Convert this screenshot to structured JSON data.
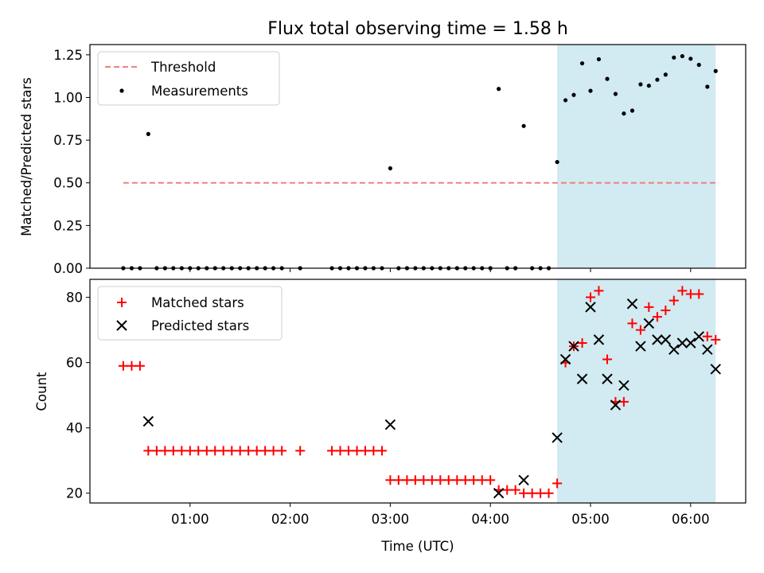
{
  "chart_data": [
    {
      "type": "scatter",
      "title": "Flux total observing time = 1.58 h",
      "ylabel": "Matched/Predicted stars",
      "xlabel": "",
      "xlim": [
        0.0,
        6.55
      ],
      "ylim": [
        0.0,
        1.31
      ],
      "yticks": [
        0.0,
        0.25,
        0.5,
        0.75,
        1.0,
        1.25
      ],
      "ytick_labels": [
        "0.00",
        "0.25",
        "0.50",
        "0.75",
        "1.00",
        "1.25"
      ],
      "xticks": [
        1,
        2,
        3,
        4,
        5,
        6
      ],
      "shaded_region": [
        4.667,
        6.25
      ],
      "threshold": {
        "name": "Threshold",
        "value": 0.5,
        "x_range": [
          0.333,
          6.25
        ],
        "color": "#f08080"
      },
      "series": [
        {
          "name": "Measurements",
          "marker": "dot",
          "color": "#000000",
          "x": [
            0.333,
            0.417,
            0.5,
            0.583,
            0.667,
            0.75,
            0.833,
            0.917,
            1.0,
            1.083,
            1.167,
            1.25,
            1.333,
            1.417,
            1.5,
            1.583,
            1.667,
            1.75,
            1.833,
            1.917,
            2.1,
            2.417,
            2.5,
            2.583,
            2.667,
            2.75,
            2.833,
            2.917,
            3.0,
            3.083,
            3.167,
            3.25,
            3.333,
            3.417,
            3.5,
            3.583,
            3.667,
            3.75,
            3.833,
            3.917,
            4.0,
            4.083,
            4.167,
            4.25,
            4.333,
            4.417,
            4.5,
            4.583,
            4.667,
            4.75,
            4.833,
            4.917,
            5.0,
            5.083,
            5.167,
            5.25,
            5.333,
            5.417,
            5.5,
            5.583,
            5.667,
            5.75,
            5.833,
            5.917,
            6.0,
            6.083,
            6.167,
            6.25
          ],
          "y": [
            0,
            0,
            0,
            0.786,
            0,
            0,
            0,
            0,
            0,
            0,
            0,
            0,
            0,
            0,
            0,
            0,
            0,
            0,
            0,
            0,
            0,
            0,
            0,
            0,
            0,
            0,
            0,
            0,
            0.585,
            0,
            0,
            0,
            0,
            0,
            0,
            0,
            0,
            0,
            0,
            0,
            0,
            1.05,
            0,
            0,
            0.833,
            0,
            0,
            0,
            0.622,
            0.984,
            1.015,
            1.2,
            1.039,
            1.224,
            1.109,
            1.021,
            0.906,
            0.923,
            1.077,
            1.069,
            1.104,
            1.134,
            1.234,
            1.242,
            1.227,
            1.191,
            1.063,
            1.155
          ]
        }
      ]
    },
    {
      "type": "scatter",
      "title": "",
      "ylabel": "Count",
      "xlabel": "Time (UTC)",
      "xlim": [
        0.0,
        6.55
      ],
      "ylim": [
        17,
        85.5
      ],
      "yticks": [
        20,
        40,
        60,
        80
      ],
      "ytick_labels": [
        "20",
        "40",
        "60",
        "80"
      ],
      "xticks": [
        1,
        2,
        3,
        4,
        5,
        6
      ],
      "xtick_labels": [
        "01:00",
        "02:00",
        "03:00",
        "04:00",
        "05:00",
        "06:00"
      ],
      "shaded_region": [
        4.667,
        6.25
      ],
      "series": [
        {
          "name": "Matched stars",
          "marker": "plus",
          "color": "#ff0000",
          "x": [
            0.333,
            0.417,
            0.5,
            0.583,
            0.667,
            0.75,
            0.833,
            0.917,
            1.0,
            1.083,
            1.167,
            1.25,
            1.333,
            1.417,
            1.5,
            1.583,
            1.667,
            1.75,
            1.833,
            1.917,
            2.1,
            2.417,
            2.5,
            2.583,
            2.667,
            2.75,
            2.833,
            2.917,
            3.0,
            3.083,
            3.167,
            3.25,
            3.333,
            3.417,
            3.5,
            3.583,
            3.667,
            3.75,
            3.833,
            3.917,
            4.0,
            4.083,
            4.167,
            4.25,
            4.333,
            4.417,
            4.5,
            4.583,
            4.667,
            4.75,
            4.833,
            4.917,
            5.0,
            5.083,
            5.167,
            5.25,
            5.333,
            5.417,
            5.5,
            5.583,
            5.667,
            5.75,
            5.833,
            5.917,
            6.0,
            6.083,
            6.167,
            6.25
          ],
          "y": [
            59,
            59,
            59,
            33,
            33,
            33,
            33,
            33,
            33,
            33,
            33,
            33,
            33,
            33,
            33,
            33,
            33,
            33,
            33,
            33,
            33,
            33,
            33,
            33,
            33,
            33,
            33,
            33,
            24,
            24,
            24,
            24,
            24,
            24,
            24,
            24,
            24,
            24,
            24,
            24,
            24,
            21,
            21,
            21,
            20,
            20,
            20,
            20,
            23,
            60,
            65,
            66,
            80,
            82,
            61,
            48,
            48,
            72,
            70,
            77,
            74,
            76,
            79,
            82,
            81,
            81,
            68,
            67
          ]
        },
        {
          "name": "Predicted stars",
          "marker": "x",
          "color": "#000000",
          "x": [
            0.583,
            3.0,
            4.083,
            4.333,
            4.667,
            4.75,
            4.833,
            4.917,
            5.0,
            5.083,
            5.167,
            5.25,
            5.333,
            5.417,
            5.5,
            5.583,
            5.667,
            5.75,
            5.833,
            5.917,
            6.0,
            6.083,
            6.167,
            6.25
          ],
          "y": [
            42,
            41,
            20,
            24,
            37,
            61,
            65,
            55,
            77,
            67,
            55,
            47,
            53,
            78,
            65,
            72,
            67,
            67,
            64,
            66,
            66,
            68,
            64,
            58
          ]
        }
      ]
    }
  ]
}
